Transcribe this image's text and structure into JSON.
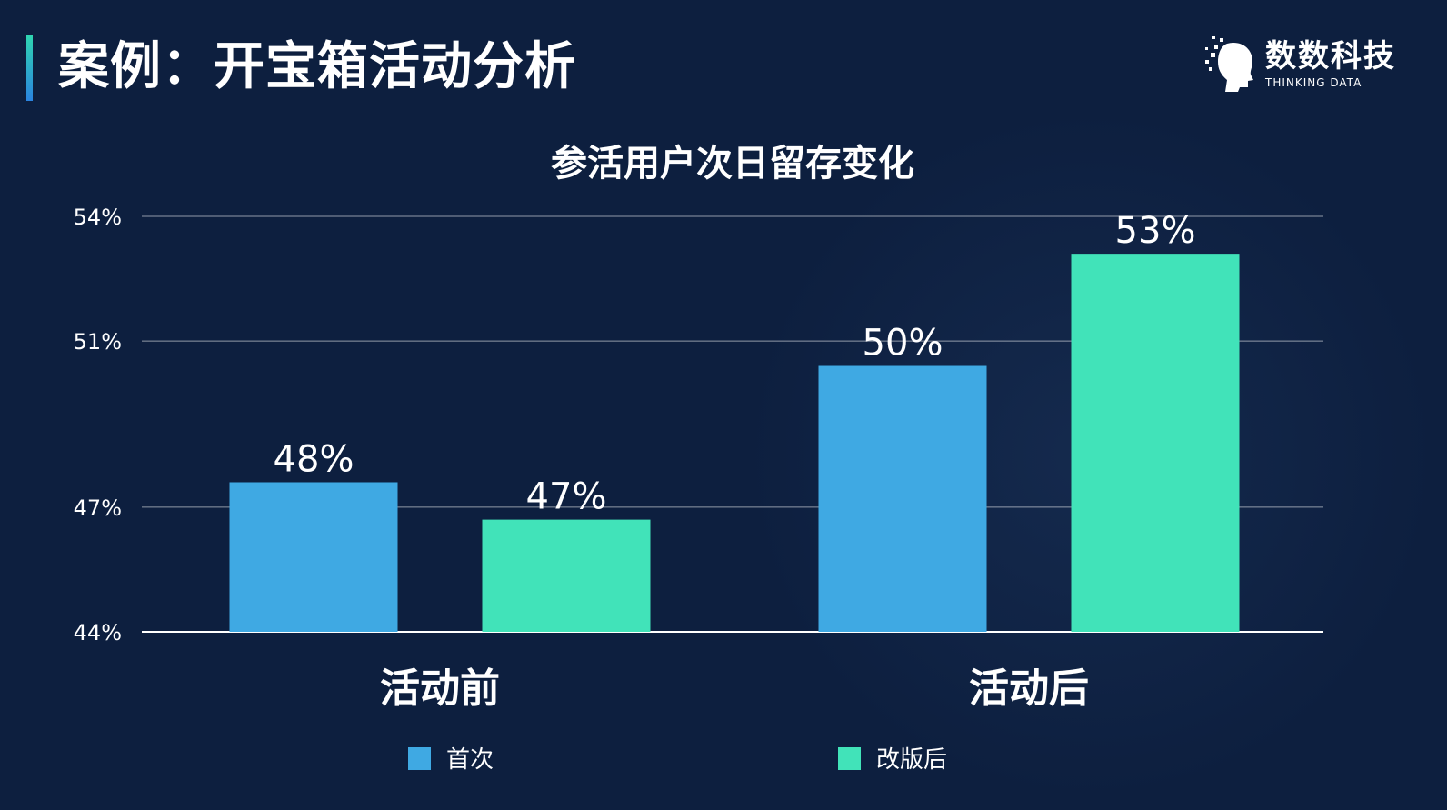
{
  "header": {
    "title": "案例：开宝箱活动分析"
  },
  "logo": {
    "name_cn": "数数科技",
    "name_en": "THINKING DATA"
  },
  "colors": {
    "background": "#0d1f3f",
    "series_first": "#3fa9e3",
    "series_revised": "#41e3b9"
  },
  "chart_data": {
    "type": "bar",
    "title": "参活用户次日留存变化",
    "categories": [
      "活动前",
      "活动后"
    ],
    "ylim": [
      44,
      54
    ],
    "yticks": [
      44,
      47,
      51,
      54
    ],
    "ytick_labels": [
      "44%",
      "47%",
      "51%",
      "54%"
    ],
    "grid": true,
    "legend_position": "bottom",
    "series": [
      {
        "name": "首次",
        "values": [
          47.6,
          50.4
        ],
        "labels": [
          "48%",
          "50%"
        ],
        "color": "#3fa9e3"
      },
      {
        "name": "改版后",
        "values": [
          46.7,
          53.1
        ],
        "labels": [
          "47%",
          "53%"
        ],
        "color": "#41e3b9"
      }
    ]
  }
}
